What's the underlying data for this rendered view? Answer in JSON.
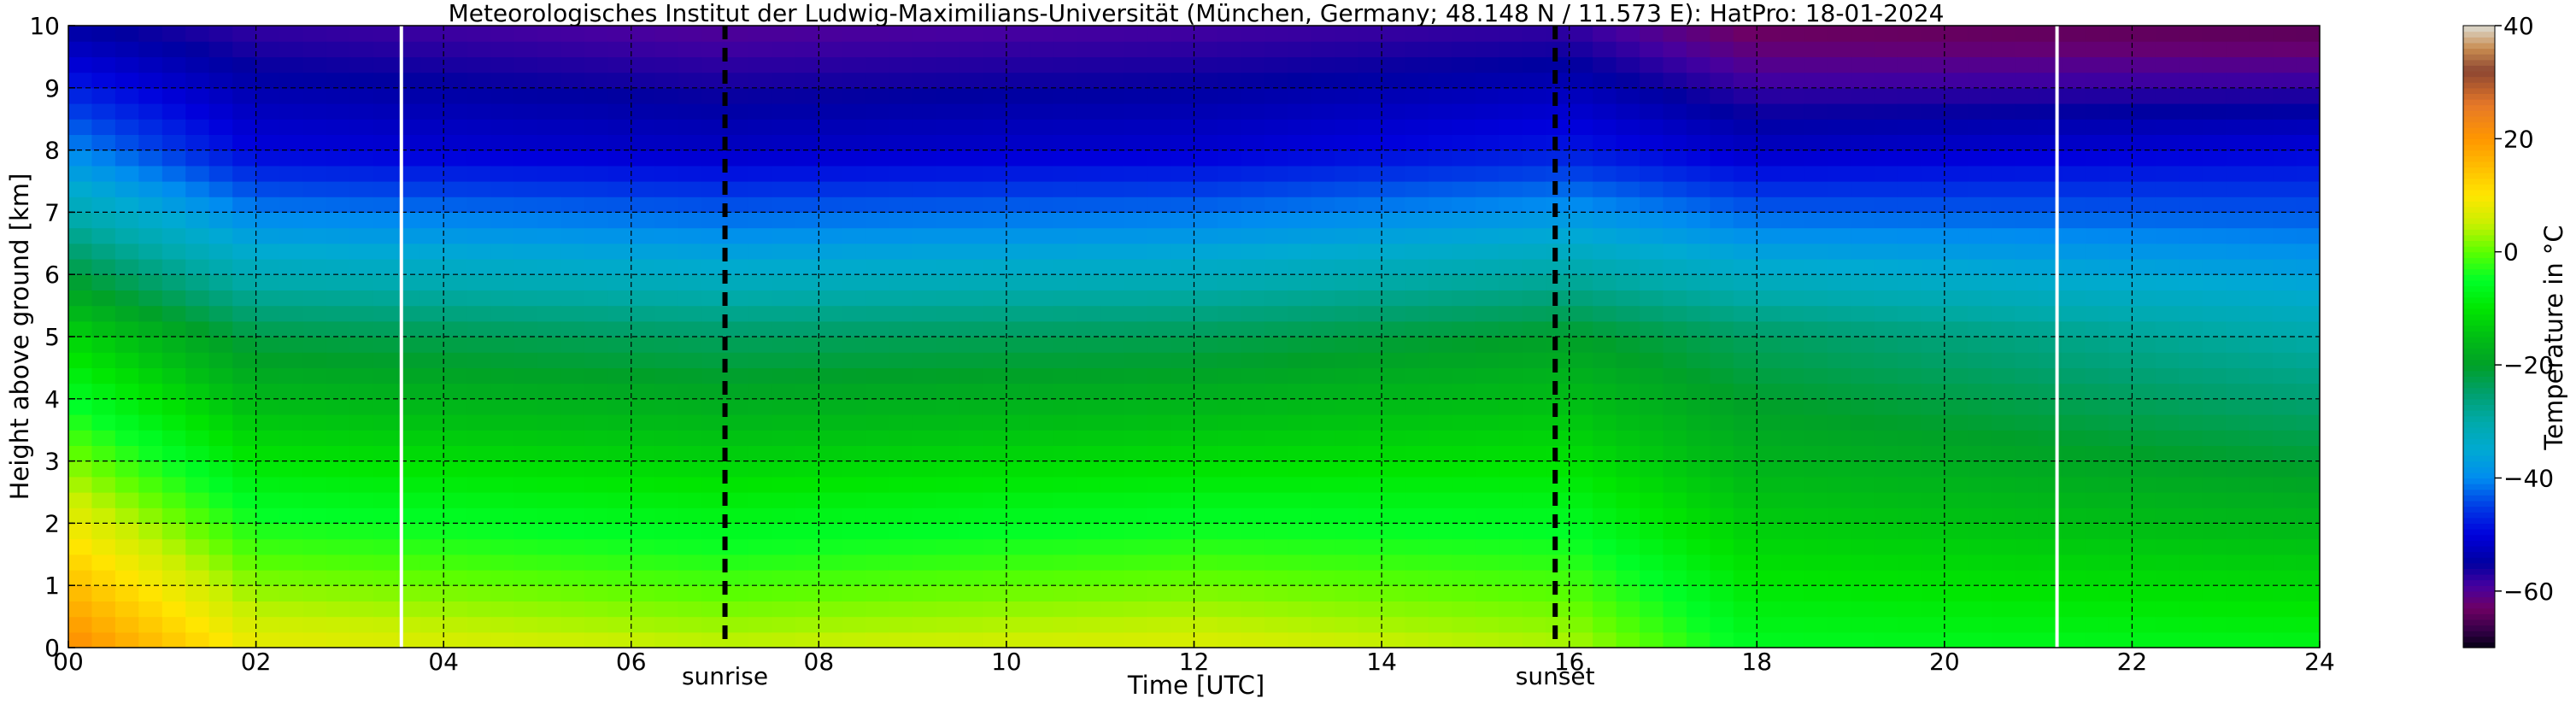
{
  "chart_data": {
    "type": "heatmap",
    "title": "Meteorologisches Institut der Ludwig-Maximilians-Universität (München, Germany; 48.148 N / 11.573 E):    HatPro: 18-01-2024",
    "xlabel": "Time [UTC]",
    "ylabel": "Height above ground [km]",
    "xlim": [
      0,
      24
    ],
    "ylim": [
      0,
      10
    ],
    "x_ticks": [
      "00",
      "02",
      "04",
      "06",
      "08",
      "10",
      "12",
      "14",
      "16",
      "18",
      "20",
      "22",
      "24"
    ],
    "y_ticks": [
      "0",
      "1",
      "2",
      "3",
      "4",
      "5",
      "6",
      "7",
      "8",
      "9",
      "10"
    ],
    "grid": "dashed",
    "colorbar": {
      "label": "Temperature in °C",
      "range": [
        -70,
        40
      ],
      "ticks": [
        "40",
        "20",
        "0",
        "−20",
        "−40",
        "−60"
      ]
    },
    "annotations": [
      {
        "text": "sunrise",
        "x": 7.0
      },
      {
        "text": "sunset",
        "x": 15.85
      }
    ],
    "data_gaps_hours": [
      3.55,
      21.2
    ],
    "temperature_profile_c": [
      {
        "time": 0.0,
        "t_surface": 22,
        "t_5km": -12,
        "t_8km": -40,
        "t_10km": -55
      },
      {
        "time": 2.0,
        "t_surface": 8,
        "t_5km": -22,
        "t_8km": -50,
        "t_10km": -58
      },
      {
        "time": 7.0,
        "t_surface": 5,
        "t_5km": -24,
        "t_8km": -52,
        "t_10km": -60
      },
      {
        "time": 12.0,
        "t_surface": 7,
        "t_5km": -23,
        "t_8km": -51,
        "t_10km": -59
      },
      {
        "time": 16.0,
        "t_surface": 4,
        "t_5km": -20,
        "t_8km": -48,
        "t_10km": -58
      },
      {
        "time": 18.0,
        "t_surface": -6,
        "t_5km": -24,
        "t_8km": -52,
        "t_10km": -64
      },
      {
        "time": 24.0,
        "t_surface": -7,
        "t_5km": -30,
        "t_8km": -50,
        "t_10km": -65
      }
    ]
  },
  "colors": {
    "background": "#ffffff",
    "grid": "#000000",
    "sun_lines": "#000000",
    "gap_lines": "#ffffff"
  }
}
